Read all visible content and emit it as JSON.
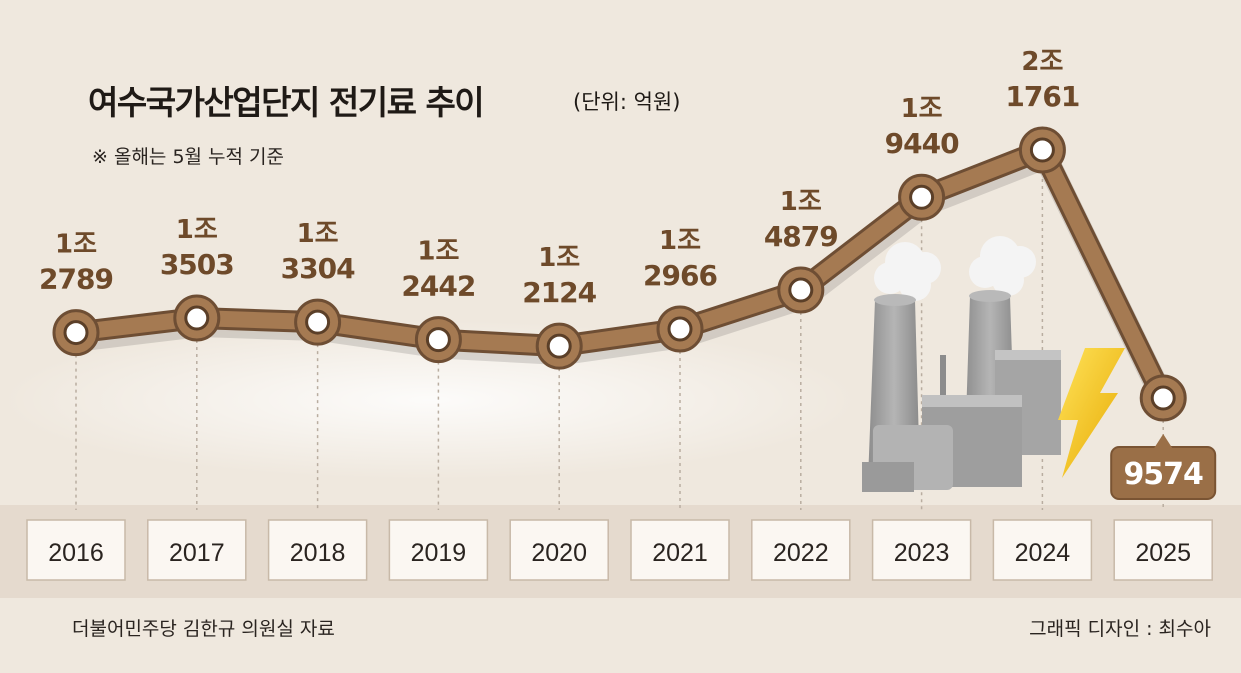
{
  "title": "여수국가산업단지 전기료 추이",
  "unit_label": "(단위: 억원)",
  "note": "※ 올해는 5월 누적 기준",
  "source": "더불어민주당 김한규 의원실 자료",
  "credit": "그래픽 디자인 : 최수아",
  "colors": {
    "background": "#efe8de",
    "line": "#a57a52",
    "line_outline": "#6e4e34",
    "value_text": "#6e4a2a",
    "year_box": "#fbf7f2",
    "callout": "#9a6f47",
    "lightning": "#f3c21b",
    "factory": "#9a9a9a"
  },
  "icons": [
    "power-plant-icon",
    "lightning-bolt-icon"
  ],
  "chart_data": {
    "type": "line",
    "title": "여수국가산업단지 전기료 추이",
    "unit": "억원",
    "xlabel": "",
    "ylabel": "",
    "grid": false,
    "categories": [
      "2016",
      "2017",
      "2018",
      "2019",
      "2020",
      "2021",
      "2022",
      "2023",
      "2024",
      "2025"
    ],
    "values": [
      12789,
      13503,
      13304,
      12442,
      12124,
      12966,
      14879,
      19440,
      21761,
      9574
    ],
    "labels": [
      {
        "top": "1조",
        "bottom": "2789"
      },
      {
        "top": "1조",
        "bottom": "3503"
      },
      {
        "top": "1조",
        "bottom": "3304"
      },
      {
        "top": "1조",
        "bottom": "2442"
      },
      {
        "top": "1조",
        "bottom": "2124"
      },
      {
        "top": "1조",
        "bottom": "2966"
      },
      {
        "top": "1조",
        "bottom": "4879"
      },
      {
        "top": "1조",
        "bottom": "9440"
      },
      {
        "top": "2조",
        "bottom": "1761"
      },
      {
        "top": "",
        "bottom": "9574"
      }
    ],
    "highlight_index": 9
  }
}
